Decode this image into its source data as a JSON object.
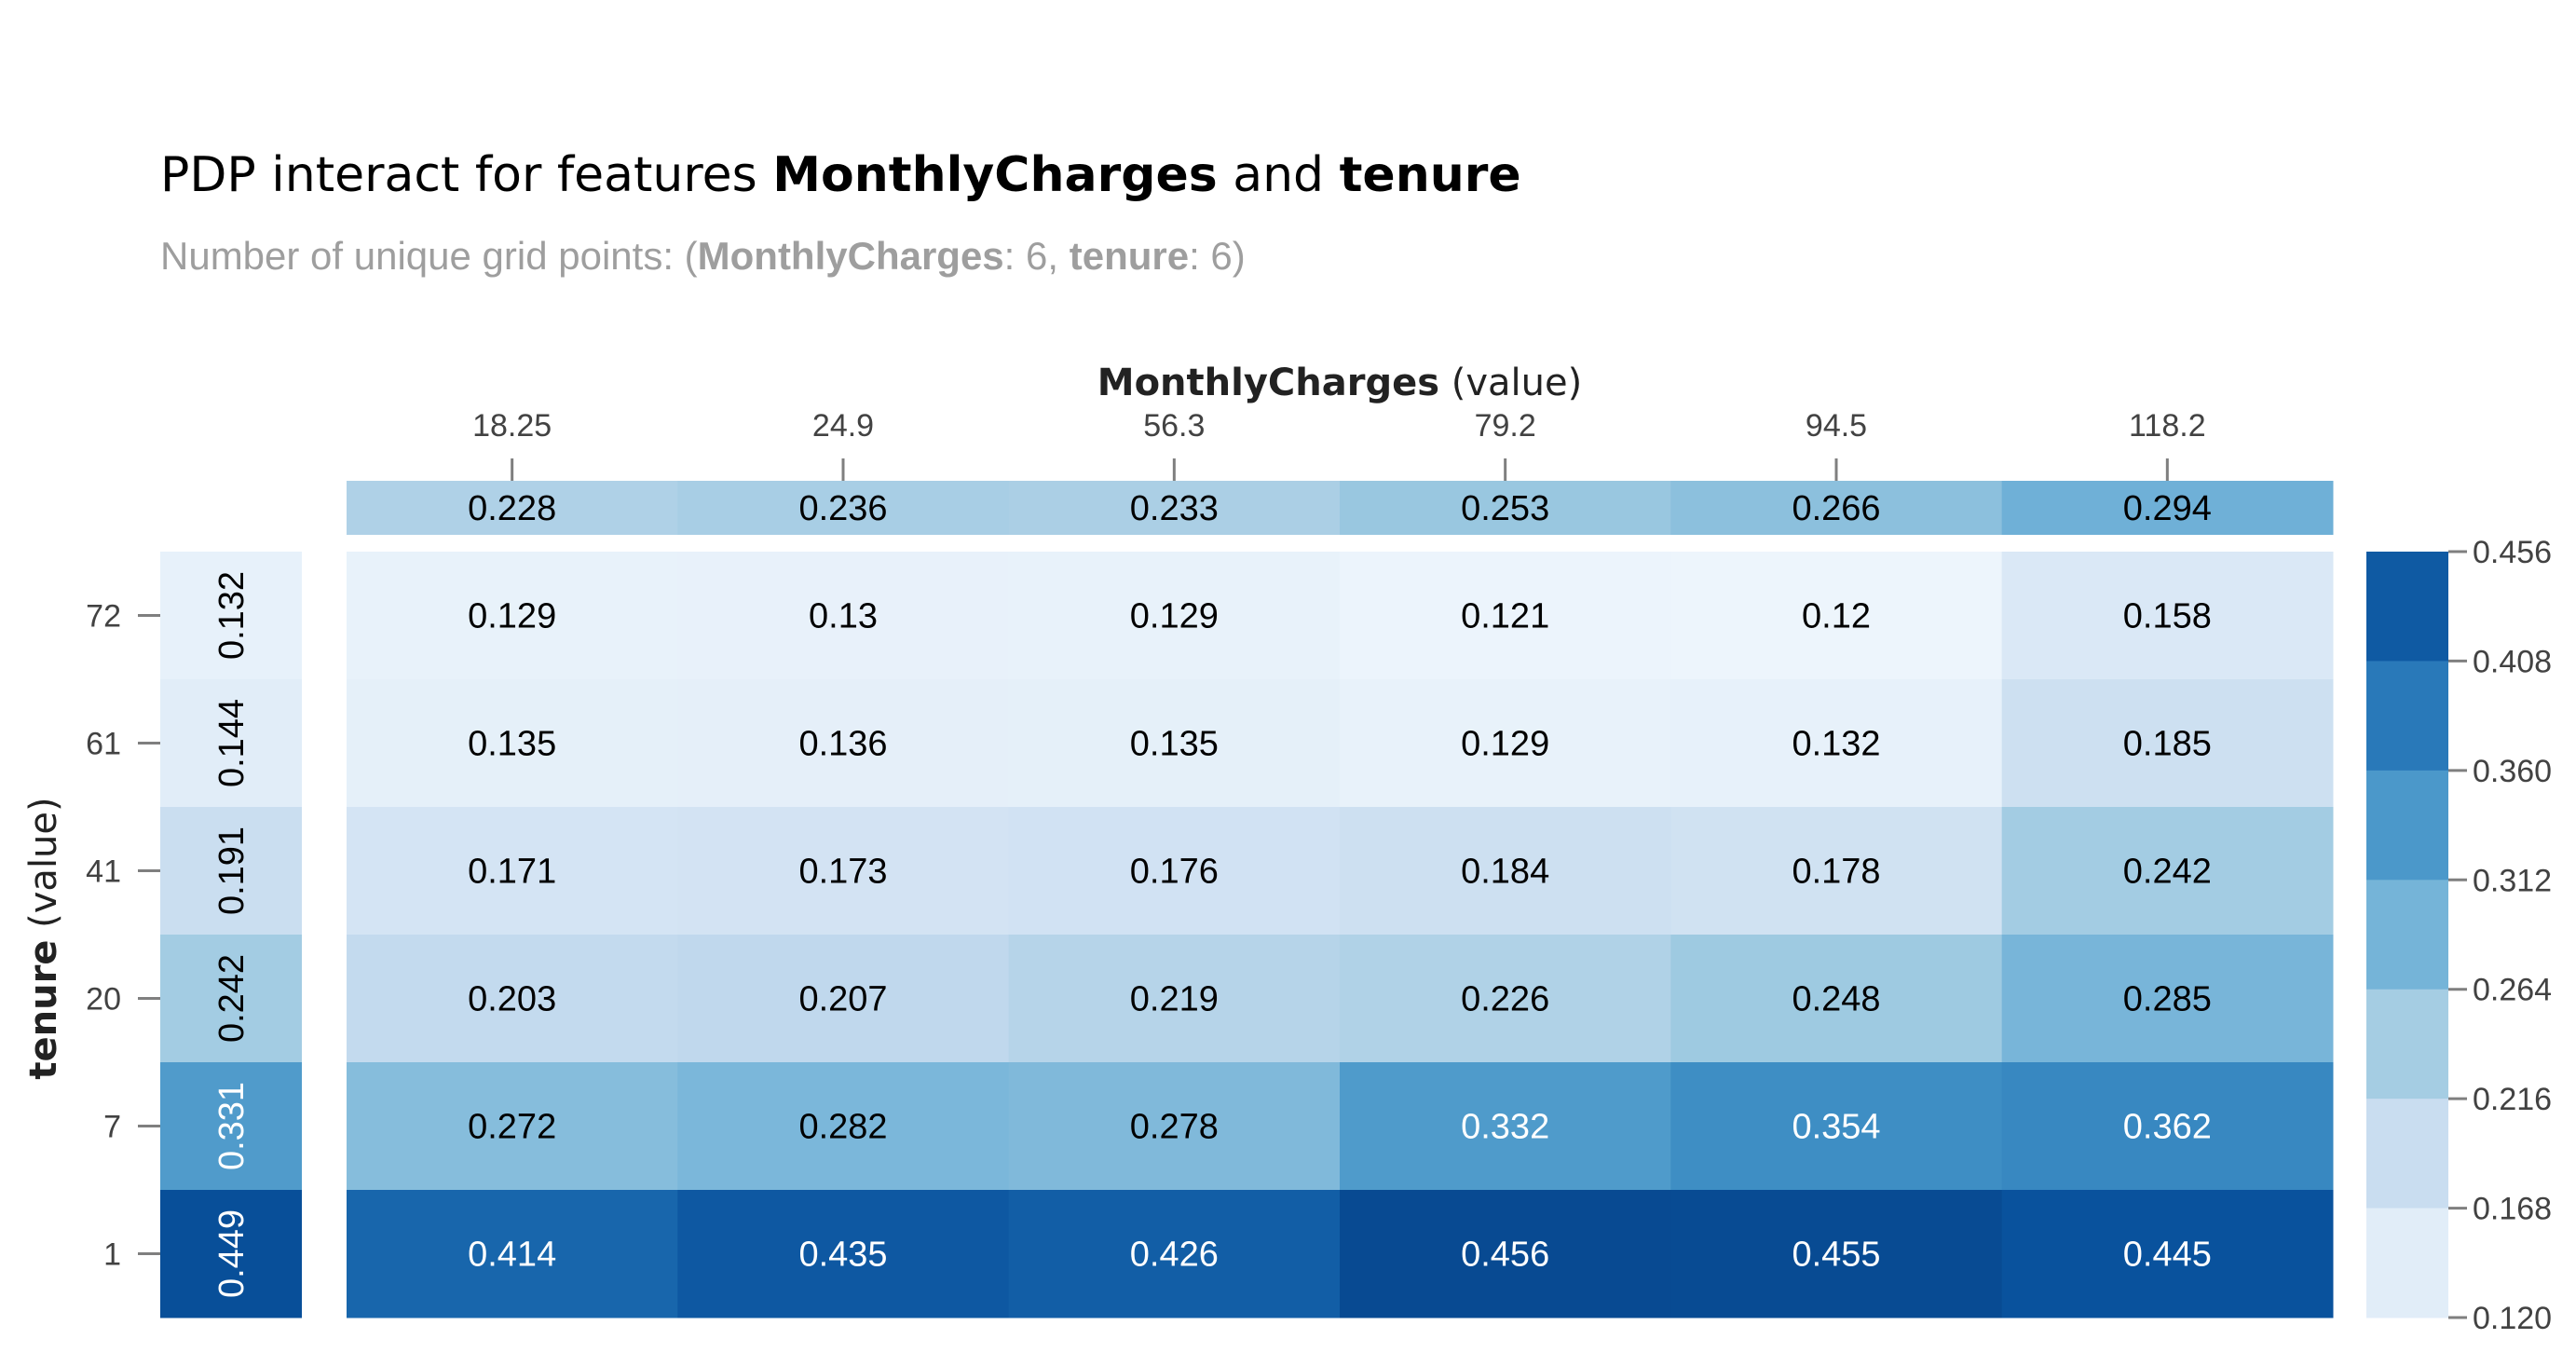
{
  "chart_data": {
    "type": "heatmap",
    "title": {
      "prefix": "PDP interact for features ",
      "feature_1": "MonthlyCharges",
      "joiner": " and ",
      "feature_2": "tenure"
    },
    "subtitle": {
      "prefix": "Number of unique grid points: (",
      "feature_1": "MonthlyCharges",
      "value_1": ": 6, ",
      "feature_2": "tenure",
      "value_2": ": 6)"
    },
    "xlabel": {
      "name": "MonthlyCharges",
      "suffix": " (value)"
    },
    "ylabel": {
      "name": "tenure",
      "suffix": " (value)"
    },
    "x_ticks": [
      "18.25",
      "24.9",
      "56.3",
      "79.2",
      "94.5",
      "118.2"
    ],
    "y_ticks": [
      "72",
      "61",
      "41",
      "20",
      "7",
      "1"
    ],
    "x_marginal": [
      "0.228",
      "0.236",
      "0.233",
      "0.253",
      "0.266",
      "0.294"
    ],
    "y_marginal": [
      "0.132",
      "0.144",
      "0.191",
      "0.242",
      "0.331",
      "0.449"
    ],
    "values": [
      [
        "0.129",
        "0.13",
        "0.129",
        "0.121",
        "0.12",
        "0.158"
      ],
      [
        "0.135",
        "0.136",
        "0.135",
        "0.129",
        "0.132",
        "0.185"
      ],
      [
        "0.171",
        "0.173",
        "0.176",
        "0.184",
        "0.178",
        "0.242"
      ],
      [
        "0.203",
        "0.207",
        "0.219",
        "0.226",
        "0.248",
        "0.285"
      ],
      [
        "0.272",
        "0.282",
        "0.278",
        "0.332",
        "0.354",
        "0.362"
      ],
      [
        "0.414",
        "0.435",
        "0.426",
        "0.456",
        "0.455",
        "0.445"
      ]
    ],
    "colorbar_ticks": [
      "0.456",
      "0.408",
      "0.360",
      "0.312",
      "0.264",
      "0.216",
      "0.168",
      "0.120"
    ],
    "colorbar_range": [
      0.12,
      0.456
    ],
    "grid": false,
    "colors": {
      "title": "#000000",
      "subtitle": "#9e9e9e",
      "tick": "#424242",
      "axis_title": "#222222",
      "tick_mark": "#7f7f7f",
      "scale": [
        "#f7fbff",
        "#deebf7",
        "#c6dbef",
        "#9ecae1",
        "#6baed6",
        "#4292c6",
        "#2171b5",
        "#08519c",
        "#08306b"
      ]
    }
  }
}
